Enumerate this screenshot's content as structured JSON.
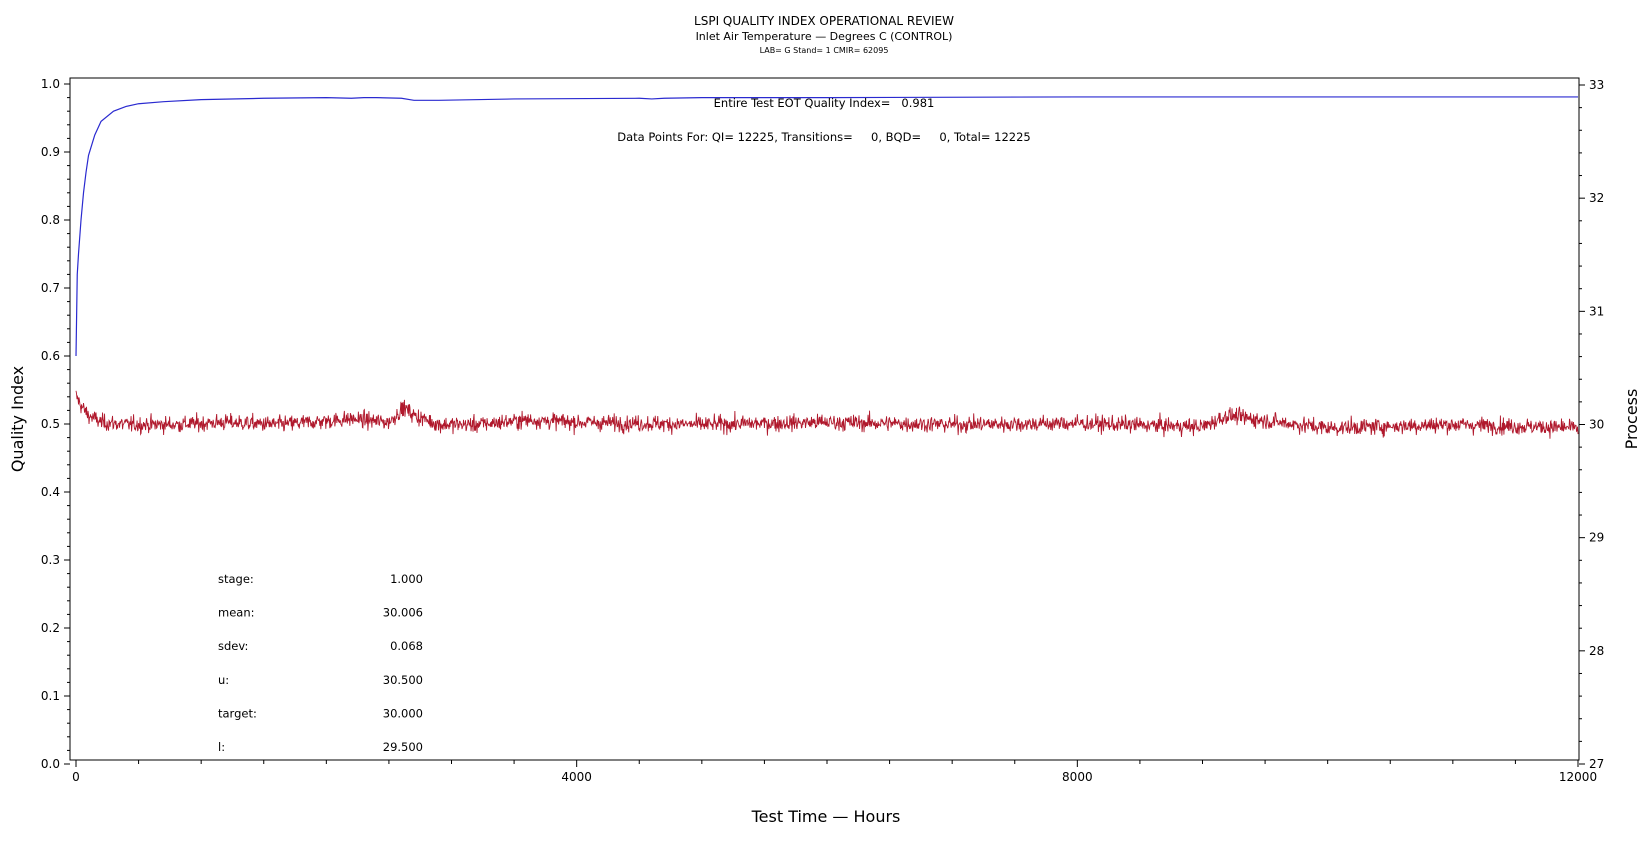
{
  "chart_data": {
    "type": "line",
    "title": "LSPI QUALITY INDEX OPERATIONAL REVIEW",
    "subtitle": "Inlet Air Temperature — Degrees C (CONTROL)",
    "subsubtitle": "LAB= G Stand= 1 CMIR= 62095",
    "xlabel": "Test Time — Hours",
    "ylabel_left": "Quality Index",
    "ylabel_right": "Process",
    "xlim": [
      0,
      12000
    ],
    "ylim_left": [
      0.0,
      1.0
    ],
    "ylim_right": [
      27,
      33
    ],
    "x_ticks": [
      "0",
      "4000",
      "8000",
      "12000"
    ],
    "y_left_ticks": [
      "0.0",
      "0.1",
      "0.2",
      "0.3",
      "0.4",
      "0.5",
      "0.6",
      "0.7",
      "0.8",
      "0.9",
      "1.0"
    ],
    "y_right_ticks": [
      "27",
      "28",
      "29",
      "30",
      "31",
      "32",
      "33"
    ],
    "grid": false,
    "annotations": {
      "eot_quality_index": "Entire Test EOT Quality Index=   0.981",
      "data_points": "Data Points For: QI= 12225, Transitions=     0, BQD=     0, Total= 12225"
    },
    "stats": [
      {
        "label": "stage:",
        "value": "1.000"
      },
      {
        "label": "mean:",
        "value": "30.006"
      },
      {
        "label": "sdev:",
        "value": "0.068"
      },
      {
        "label": "u:",
        "value": "30.500"
      },
      {
        "label": "target:",
        "value": "30.000"
      },
      {
        "label": "l:",
        "value": "29.500"
      }
    ],
    "series": [
      {
        "name": "",
        "axis": "left",
        "color": "#2a2ad0",
        "x": [
          0,
          10,
          20,
          40,
          60,
          80,
          100,
          150,
          200,
          300,
          400,
          500,
          700,
          1000,
          1500,
          2000,
          2200,
          2300,
          2400,
          2600,
          2700,
          2900,
          3500,
          4500,
          4600,
          4700,
          5000,
          6000,
          8000,
          10000,
          12000
        ],
        "values": [
          0.6,
          0.72,
          0.75,
          0.8,
          0.84,
          0.87,
          0.895,
          0.925,
          0.945,
          0.96,
          0.967,
          0.971,
          0.974,
          0.977,
          0.979,
          0.98,
          0.979,
          0.98,
          0.98,
          0.979,
          0.976,
          0.976,
          0.978,
          0.979,
          0.978,
          0.979,
          0.98,
          0.98,
          0.981,
          0.981,
          0.981
        ]
      },
      {
        "name": "",
        "axis": "right",
        "color": "#b0182c",
        "x": [
          0,
          50,
          100,
          200,
          400,
          800,
          1200,
          1600,
          2000,
          2200,
          2500,
          2620,
          2700,
          2900,
          3200,
          3600,
          4000,
          5000,
          6000,
          7000,
          8000,
          9000,
          9200,
          9600,
          10000,
          11000,
          12000
        ],
        "values": [
          30.25,
          30.15,
          30.08,
          30.02,
          30.0,
          30.0,
          30.02,
          30.0,
          30.03,
          30.05,
          30.02,
          30.15,
          30.08,
          30.0,
          30.0,
          30.04,
          30.02,
          30.0,
          30.02,
          30.0,
          30.01,
          29.98,
          30.08,
          30.02,
          29.97,
          30.0,
          29.97
        ],
        "noise_sdev": 0.068
      }
    ]
  }
}
